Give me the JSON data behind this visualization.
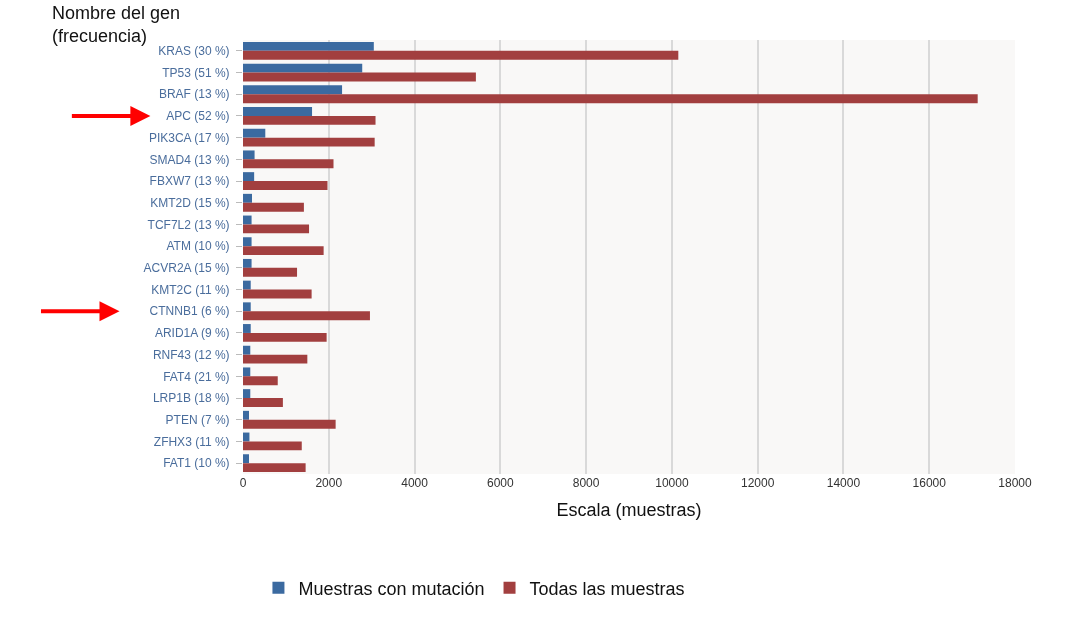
{
  "chart_data": {
    "type": "bar",
    "orientation": "horizontal",
    "ylabel": "Nombre del gen (frecuencia)",
    "xlabel": "Escala (muestras)",
    "categories": [
      "KRAS (30 %)",
      "TP53 (51 %)",
      "BRAF (13 %)",
      "APC (52 %)",
      "PIK3CA (17 %)",
      "SMAD4 (13 %)",
      "FBXW7 (13 %)",
      "KMT2D (15 %)",
      "TCF7L2 (13 %)",
      "ATM (10 %)",
      "ACVR2A (15 %)",
      "KMT2C (11 %)",
      "CTNNB1 (6 %)",
      "ARID1A (9 %)",
      "RNF43 (12 %)",
      "FAT4 (21 %)",
      "LRP1B (18 %)",
      "PTEN (7 %)",
      "ZFHX3 (11 %)",
      "FAT1 (10 %)"
    ],
    "series": [
      {
        "name": "Muestras con mutación",
        "color": "#3b6aa0",
        "values": [
          3050,
          2780,
          2310,
          1610,
          520,
          270,
          260,
          210,
          200,
          200,
          200,
          180,
          180,
          180,
          170,
          170,
          170,
          140,
          150,
          140
        ]
      },
      {
        "name": "Todas las muestras",
        "color": "#a23f3f",
        "values": [
          10150,
          5430,
          17130,
          3090,
          3070,
          2110,
          1970,
          1420,
          1540,
          1880,
          1260,
          1600,
          2960,
          1950,
          1500,
          810,
          930,
          2160,
          1370,
          1460
        ]
      }
    ],
    "xlim": [
      0,
      18000
    ],
    "xticks": [
      0,
      2000,
      4000,
      6000,
      8000,
      10000,
      12000,
      14000,
      16000,
      18000
    ],
    "grid": "x",
    "legend": "bottom"
  }
}
